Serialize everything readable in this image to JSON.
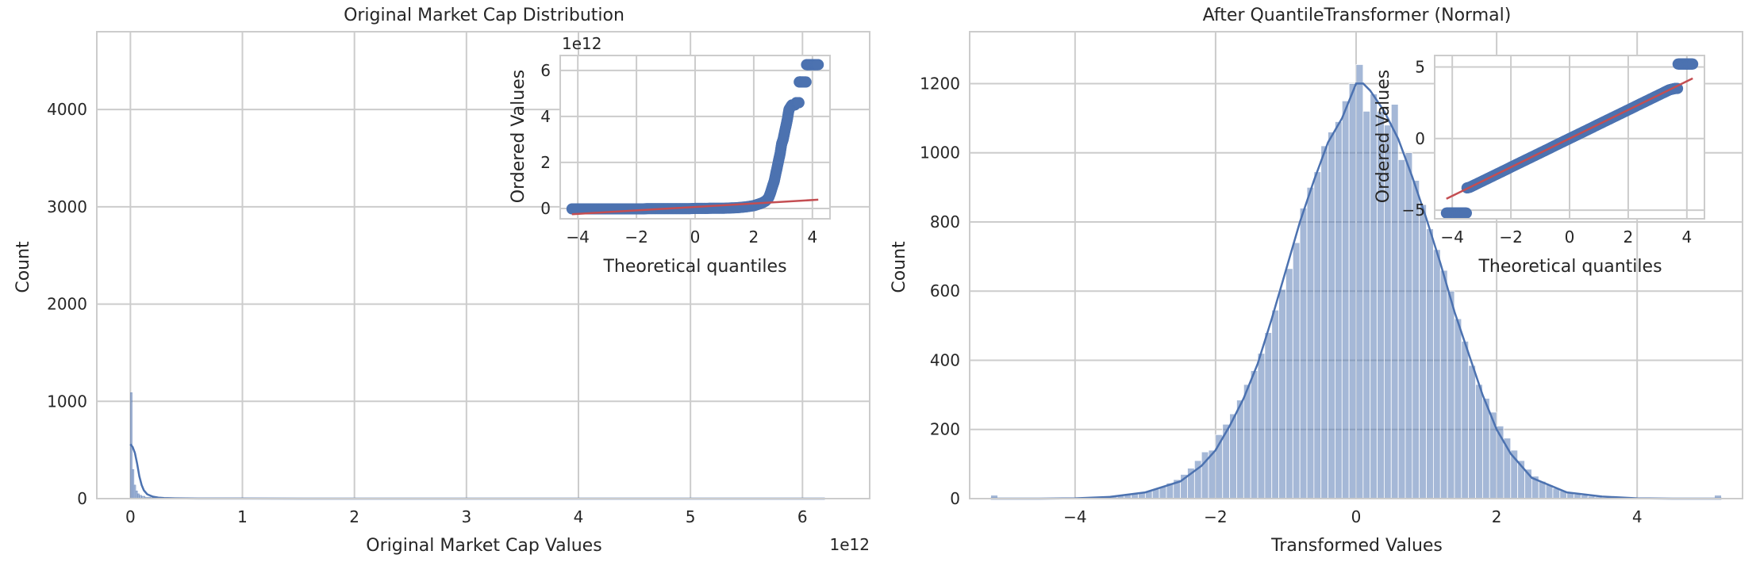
{
  "colors": {
    "background": "#ffffff",
    "grid": "#cccccc",
    "axes_edge": "#cccccc",
    "hist_fill": "#4c72b0",
    "kde_line": "#4c72b0",
    "qq_points": "#4c72b0",
    "qq_line": "#c44e52"
  },
  "chart_data": [
    {
      "type": "histogram",
      "title": "Original Market Cap Distribution",
      "xlabel": "Original Market Cap Values",
      "ylabel": "Count",
      "x_offset_label": "1e12",
      "xlim": [
        -0.3,
        6.6
      ],
      "ylim": [
        0,
        4800
      ],
      "xticks": [
        0,
        1,
        2,
        3,
        4,
        5,
        6
      ],
      "yticks": [
        0,
        1000,
        2000,
        3000,
        4000
      ],
      "grid": true,
      "bins": [
        {
          "x0": 0.0,
          "x1": 0.016,
          "count": 1090
        },
        {
          "x0": 0.016,
          "x1": 0.032,
          "count": 300
        },
        {
          "x0": 0.032,
          "x1": 0.048,
          "count": 140
        },
        {
          "x0": 0.048,
          "x1": 0.064,
          "count": 80
        },
        {
          "x0": 0.064,
          "x1": 0.08,
          "count": 50
        },
        {
          "x0": 0.08,
          "x1": 0.1,
          "count": 35
        },
        {
          "x0": 0.1,
          "x1": 0.13,
          "count": 25
        },
        {
          "x0": 0.13,
          "x1": 0.18,
          "count": 15
        },
        {
          "x0": 0.18,
          "x1": 0.25,
          "count": 10
        },
        {
          "x0": 0.25,
          "x1": 0.4,
          "count": 6
        },
        {
          "x0": 0.4,
          "x1": 0.7,
          "count": 3
        },
        {
          "x0": 0.7,
          "x1": 1.2,
          "count": 2
        }
      ],
      "kde": {
        "x": [
          0.0,
          0.02,
          0.04,
          0.06,
          0.08,
          0.1,
          0.12,
          0.15,
          0.2,
          0.25,
          0.3,
          0.4,
          0.6,
          1.0,
          2.0,
          3.0,
          4.0,
          5.0,
          6.2
        ],
        "y": [
          560,
          530,
          470,
          360,
          230,
          140,
          85,
          45,
          20,
          11,
          6,
          3,
          1,
          0.5,
          0.2,
          0.1,
          0.1,
          0.1,
          0.1
        ]
      },
      "inset": {
        "type": "scatter",
        "xlabel": "Theoretical quantiles",
        "ylabel": "Ordered Values",
        "y_offset_label": "1e12",
        "xlim": [
          -4.6,
          4.6
        ],
        "ylim": [
          -0.45,
          6.65
        ],
        "xticks": [
          -4,
          -2,
          0,
          2,
          4
        ],
        "yticks": [
          0,
          2,
          4,
          6
        ],
        "grid": true,
        "line": {
          "x": [
            -4.2,
            4.2
          ],
          "y": [
            -0.25,
            0.38
          ]
        },
        "points": {
          "x": [
            -4.2,
            -4.0,
            -3.8,
            -3.6,
            -3.4,
            -3.2,
            -3.0,
            -2.8,
            -2.6,
            -2.4,
            -2.2,
            -2.0,
            -1.8,
            -1.6,
            -1.4,
            -1.2,
            -1.0,
            -0.8,
            -0.6,
            -0.4,
            -0.2,
            0.0,
            0.2,
            0.4,
            0.6,
            0.8,
            1.0,
            1.2,
            1.4,
            1.6,
            1.8,
            2.0,
            2.1,
            2.2,
            2.3,
            2.4,
            2.5,
            2.55,
            2.6,
            2.65,
            2.7,
            2.75,
            2.8,
            2.85,
            2.9,
            2.95,
            3.0,
            3.05,
            3.1,
            3.15,
            3.2,
            3.3,
            3.4,
            3.45,
            3.5,
            3.55,
            3.6,
            3.7,
            3.8,
            3.85,
            3.9,
            3.95,
            4.0,
            4.05,
            4.1,
            4.15,
            4.2
          ],
          "y": [
            -0.02,
            -0.02,
            -0.02,
            -0.02,
            -0.02,
            -0.02,
            -0.02,
            -0.02,
            -0.02,
            -0.02,
            -0.02,
            -0.02,
            -0.02,
            -0.01,
            -0.01,
            -0.01,
            -0.01,
            -0.01,
            -0.01,
            -0.01,
            -0.01,
            0.0,
            0.0,
            0.0,
            0.01,
            0.01,
            0.01,
            0.02,
            0.03,
            0.05,
            0.08,
            0.12,
            0.16,
            0.2,
            0.25,
            0.32,
            0.45,
            0.6,
            0.8,
            1.0,
            1.2,
            1.5,
            1.8,
            2.1,
            2.4,
            2.8,
            3.0,
            3.3,
            3.6,
            3.9,
            4.3,
            4.5,
            4.5,
            4.6,
            4.6,
            5.5,
            5.5,
            5.5,
            6.25,
            6.25,
            6.25,
            6.25,
            6.25,
            6.25,
            6.25,
            6.25,
            6.25
          ]
        }
      }
    },
    {
      "type": "histogram",
      "title": "After QuantileTransformer (Normal)",
      "xlabel": "Transformed Values",
      "ylabel": "Count",
      "xlim": [
        -5.5,
        5.5
      ],
      "ylim": [
        0,
        1350
      ],
      "xticks": [
        -4,
        -2,
        0,
        2,
        4
      ],
      "yticks": [
        0,
        200,
        400,
        600,
        800,
        1000,
        1200
      ],
      "grid": true,
      "bin_edges": [
        -5.2,
        5.2
      ],
      "bin_width": 0.1,
      "counts": [
        [
          -5.15,
          10
        ],
        [
          -3.55,
          6
        ],
        [
          -3.45,
          8
        ],
        [
          -3.35,
          10
        ],
        [
          -3.25,
          12
        ],
        [
          -3.15,
          15
        ],
        [
          -3.05,
          18
        ],
        [
          -2.95,
          22
        ],
        [
          -2.85,
          28
        ],
        [
          -2.75,
          35
        ],
        [
          -2.65,
          45
        ],
        [
          -2.55,
          55
        ],
        [
          -2.45,
          70
        ],
        [
          -2.35,
          88
        ],
        [
          -2.25,
          110
        ],
        [
          -2.15,
          135
        ],
        [
          -2.05,
          140
        ],
        [
          -1.95,
          185
        ],
        [
          -1.85,
          215
        ],
        [
          -1.75,
          245
        ],
        [
          -1.65,
          285
        ],
        [
          -1.55,
          330
        ],
        [
          -1.45,
          370
        ],
        [
          -1.35,
          420
        ],
        [
          -1.25,
          480
        ],
        [
          -1.15,
          545
        ],
        [
          -1.05,
          605
        ],
        [
          -0.95,
          665
        ],
        [
          -0.85,
          740
        ],
        [
          -0.75,
          840
        ],
        [
          -0.65,
          900
        ],
        [
          -0.55,
          945
        ],
        [
          -0.45,
          1020
        ],
        [
          -0.35,
          1060
        ],
        [
          -0.25,
          1090
        ],
        [
          -0.15,
          1150
        ],
        [
          -0.05,
          1200
        ],
        [
          0.05,
          1255
        ],
        [
          0.15,
          1120
        ],
        [
          0.25,
          1170
        ],
        [
          0.35,
          1120
        ],
        [
          0.45,
          1080
        ],
        [
          0.55,
          1140
        ],
        [
          0.65,
          980
        ],
        [
          0.75,
          1000
        ],
        [
          0.85,
          920
        ],
        [
          0.95,
          850
        ],
        [
          1.05,
          780
        ],
        [
          1.15,
          720
        ],
        [
          1.25,
          660
        ],
        [
          1.35,
          600
        ],
        [
          1.45,
          520
        ],
        [
          1.55,
          455
        ],
        [
          1.65,
          385
        ],
        [
          1.75,
          330
        ],
        [
          1.85,
          290
        ],
        [
          1.95,
          250
        ],
        [
          2.05,
          210
        ],
        [
          2.15,
          175
        ],
        [
          2.25,
          140
        ],
        [
          2.35,
          110
        ],
        [
          2.45,
          85
        ],
        [
          2.55,
          65
        ],
        [
          2.65,
          50
        ],
        [
          2.75,
          40
        ],
        [
          2.85,
          30
        ],
        [
          2.95,
          23
        ],
        [
          3.05,
          17
        ],
        [
          3.15,
          13
        ],
        [
          3.25,
          10
        ],
        [
          3.35,
          7
        ],
        [
          3.45,
          5
        ],
        [
          3.55,
          3
        ],
        [
          5.15,
          10
        ]
      ],
      "kde": {
        "x": [
          -5.2,
          -4.5,
          -4.0,
          -3.5,
          -3.0,
          -2.5,
          -2.2,
          -2.0,
          -1.8,
          -1.6,
          -1.4,
          -1.2,
          -1.0,
          -0.8,
          -0.6,
          -0.4,
          -0.2,
          0.0,
          0.1,
          0.2,
          0.4,
          0.6,
          0.8,
          1.0,
          1.2,
          1.4,
          1.6,
          1.8,
          2.0,
          2.2,
          2.5,
          3.0,
          3.5,
          4.0,
          4.5,
          5.2
        ],
        "y": [
          0,
          0,
          1,
          5,
          18,
          50,
          95,
          140,
          210,
          290,
          390,
          520,
          660,
          800,
          920,
          1030,
          1100,
          1200,
          1200,
          1180,
          1120,
          1040,
          930,
          810,
          680,
          540,
          420,
          300,
          200,
          130,
          60,
          18,
          6,
          1,
          0,
          0
        ]
      },
      "inset": {
        "type": "scatter",
        "xlabel": "Theoretical quantiles",
        "ylabel": "Ordered Values",
        "xlim": [
          -4.6,
          4.6
        ],
        "ylim": [
          -5.6,
          5.8
        ],
        "xticks": [
          -4,
          -2,
          0,
          2,
          4
        ],
        "yticks": [
          -5,
          0,
          5
        ],
        "grid": true,
        "line": {
          "x": [
            -4.2,
            4.2
          ],
          "y": [
            -4.2,
            4.2
          ]
        },
        "points": {
          "x": [
            -4.2,
            -4.1,
            -4.0,
            -3.9,
            -3.8,
            -3.7,
            -3.6,
            -3.5,
            -3.4,
            -3.3,
            -3.2,
            -3.0,
            -2.8,
            -2.6,
            -2.4,
            -2.2,
            -2.0,
            -1.8,
            -1.6,
            -1.4,
            -1.2,
            -1.0,
            -0.8,
            -0.6,
            -0.4,
            -0.2,
            0.0,
            0.2,
            0.4,
            0.6,
            0.8,
            1.0,
            1.2,
            1.4,
            1.6,
            1.8,
            2.0,
            2.2,
            2.4,
            2.6,
            2.8,
            3.0,
            3.2,
            3.3,
            3.4,
            3.5,
            3.6,
            3.7,
            3.8,
            3.9,
            4.0,
            4.1,
            4.2
          ],
          "y": [
            -5.2,
            -5.2,
            -5.2,
            -5.2,
            -5.2,
            -5.2,
            -5.2,
            -3.45,
            -3.4,
            -3.3,
            -3.2,
            -3.0,
            -2.8,
            -2.6,
            -2.4,
            -2.2,
            -2.0,
            -1.8,
            -1.6,
            -1.4,
            -1.2,
            -1.0,
            -0.8,
            -0.6,
            -0.4,
            -0.2,
            0.0,
            0.2,
            0.4,
            0.6,
            0.8,
            1.0,
            1.2,
            1.4,
            1.6,
            1.8,
            2.0,
            2.2,
            2.4,
            2.6,
            2.8,
            3.0,
            3.2,
            3.3,
            3.4,
            3.45,
            3.5,
            5.2,
            5.2,
            5.2,
            5.2,
            5.2,
            5.2
          ]
        }
      }
    }
  ]
}
